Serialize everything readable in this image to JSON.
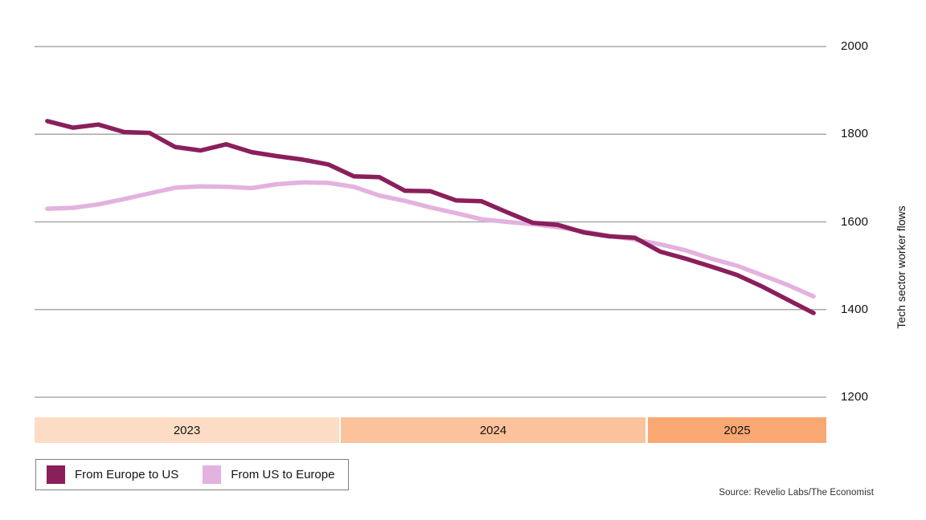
{
  "chart": {
    "y_axis_title": "Tech sector worker flows",
    "source": "Source: Revelio Labs/The Economist"
  },
  "chart_data": {
    "type": "line",
    "title": "",
    "ylabel": "Tech sector worker flows",
    "ylim": [
      1200,
      2000
    ],
    "yticks": [
      2000,
      1800,
      1600,
      1400,
      1200
    ],
    "grid": "horizontal-only",
    "gridline_color": "#a8a8a8",
    "x_unit": "monthly, Jan 2023 - Jul 2025",
    "x_bands": [
      {
        "label": "2023",
        "months": 12,
        "color": "#fddcc5"
      },
      {
        "label": "2024",
        "months": 12,
        "color": "#fcc29b"
      },
      {
        "label": "2025",
        "months": 7,
        "color": "#f9a873"
      }
    ],
    "legend_position": "bottom-left",
    "series": [
      {
        "name": "From Europe to US",
        "color": "#8a1f5c",
        "values": [
          1830,
          1815,
          1822,
          1805,
          1803,
          1771,
          1763,
          1777,
          1759,
          1750,
          1742,
          1731,
          1704,
          1702,
          1671,
          1670,
          1649,
          1647,
          1622,
          1598,
          1593,
          1576,
          1567,
          1564,
          1532,
          1516,
          1498,
          1479,
          1452,
          1422,
          1392
        ]
      },
      {
        "name": "From US to Europe",
        "color": "#e3b2df",
        "values": [
          1630,
          1632,
          1640,
          1652,
          1665,
          1678,
          1681,
          1680,
          1677,
          1686,
          1690,
          1689,
          1680,
          1660,
          1648,
          1633,
          1620,
          1606,
          1600,
          1595,
          1588,
          1578,
          1568,
          1560,
          1549,
          1535,
          1516,
          1500,
          1478,
          1456,
          1430
        ]
      }
    ]
  }
}
